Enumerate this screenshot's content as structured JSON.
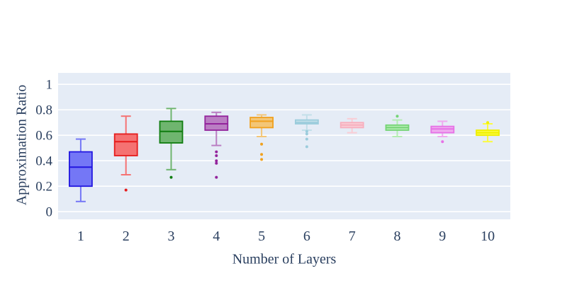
{
  "figure": {
    "background": "#ffffff",
    "plot_background": "#e5ecf6",
    "grid_color": "#ffffff",
    "text_color": "#2a3f5f"
  },
  "chart_data": {
    "type": "box",
    "xlabel": "Number of Layers",
    "ylabel": "Approximation Ratio",
    "categories": [
      "1",
      "2",
      "3",
      "4",
      "5",
      "6",
      "7",
      "8",
      "9",
      "10"
    ],
    "yticks": [
      0,
      0.2,
      0.4,
      0.6,
      0.8,
      1
    ],
    "ytick_labels": [
      "0",
      "0.2",
      "0.4",
      "0.6",
      "0.8",
      "1"
    ],
    "ylim": [
      -0.06,
      1.09
    ],
    "grid": true,
    "legend": false,
    "series": [
      {
        "name": "1",
        "fill": "#7477f6",
        "stroke": "#2217e0",
        "low": 0.08,
        "q1": 0.2,
        "median": 0.35,
        "q3": 0.47,
        "high": 0.57,
        "outliers": []
      },
      {
        "name": "2",
        "fill": "#f57272",
        "stroke": "#e51c1c",
        "low": 0.29,
        "q1": 0.44,
        "median": 0.55,
        "q3": 0.61,
        "high": 0.75,
        "outliers": [
          0.17
        ]
      },
      {
        "name": "3",
        "fill": "#6fb56f",
        "stroke": "#0f7d0f",
        "low": 0.33,
        "q1": 0.54,
        "median": 0.63,
        "q3": 0.71,
        "high": 0.81,
        "outliers": [
          0.27
        ]
      },
      {
        "name": "4",
        "fill": "#ba7ec3",
        "stroke": "#93239c",
        "low": 0.52,
        "q1": 0.64,
        "median": 0.69,
        "q3": 0.75,
        "high": 0.78,
        "outliers": [
          0.47,
          0.44,
          0.4,
          0.38,
          0.27
        ]
      },
      {
        "name": "5",
        "fill": "#f3c677",
        "stroke": "#f0a11f",
        "low": 0.59,
        "q1": 0.66,
        "median": 0.71,
        "q3": 0.74,
        "high": 0.76,
        "outliers": [
          0.53,
          0.45,
          0.41
        ]
      },
      {
        "name": "6",
        "fill": "#c2dfe9",
        "stroke": "#9bccdc",
        "low": 0.64,
        "q1": 0.69,
        "median": 0.7,
        "q3": 0.72,
        "high": 0.76,
        "outliers": [
          0.63,
          0.61,
          0.57,
          0.51
        ]
      },
      {
        "name": "7",
        "fill": "#f9cdd5",
        "stroke": "#f7afbe",
        "low": 0.62,
        "q1": 0.66,
        "median": 0.68,
        "q3": 0.7,
        "high": 0.73,
        "outliers": []
      },
      {
        "name": "8",
        "fill": "#b4ecb4",
        "stroke": "#74d474",
        "low": 0.59,
        "q1": 0.64,
        "median": 0.66,
        "q3": 0.68,
        "high": 0.72,
        "outliers": [
          0.75
        ]
      },
      {
        "name": "9",
        "fill": "#efaaef",
        "stroke": "#e671e6",
        "low": 0.59,
        "q1": 0.62,
        "median": 0.65,
        "q3": 0.67,
        "high": 0.71,
        "outliers": [
          0.55
        ]
      },
      {
        "name": "10",
        "fill": "#fbfb3f",
        "stroke": "#efef00",
        "low": 0.55,
        "q1": 0.6,
        "median": 0.62,
        "q3": 0.64,
        "high": 0.69,
        "outliers": [
          0.7
        ]
      }
    ]
  }
}
